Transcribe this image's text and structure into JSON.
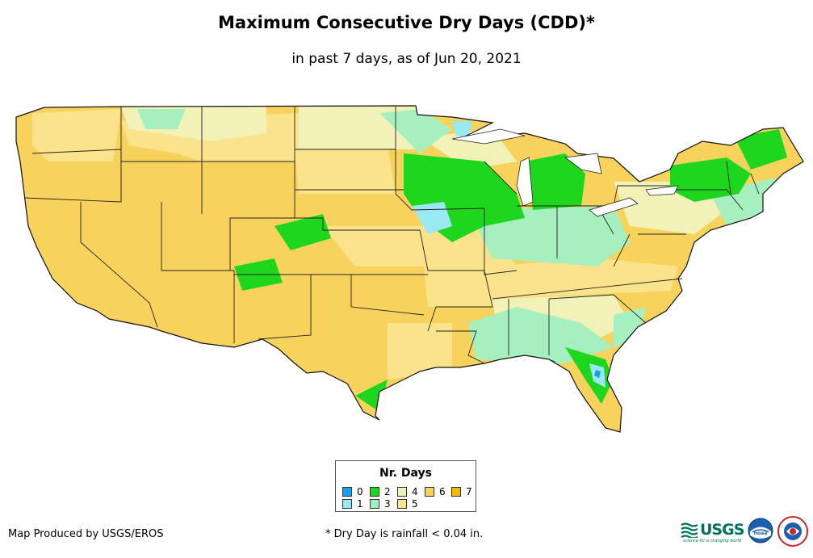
{
  "title": "Maximum Consecutive Dry Days (CDD)*",
  "subtitle": "in past 7 days, as of Jun 20, 2021",
  "legend": {
    "title": "Nr. Days",
    "items": [
      {
        "label": "0",
        "color": "#1a9fea"
      },
      {
        "label": "1",
        "color": "#9be8f5"
      },
      {
        "label": "2",
        "color": "#1ed61e"
      },
      {
        "label": "3",
        "color": "#a6f0c0"
      },
      {
        "label": "4",
        "color": "#f2f2b8"
      },
      {
        "label": "5",
        "color": "#fae38a"
      },
      {
        "label": "6",
        "color": "#f7d35e"
      },
      {
        "label": "7",
        "color": "#f5b800"
      }
    ]
  },
  "credit": "Map Produced by USGS/EROS",
  "footnote": "* Dry Day is rainfall < 0.04 in.",
  "logos": {
    "usgs": "USGS",
    "usgs_tagline": "science for a changing world",
    "noaa": "noaa",
    "nws": "NATIONAL WEATHER SERVICE"
  },
  "icons": [
    "usgs-logo",
    "noaa-logo",
    "nws-logo"
  ],
  "base_color": "#f7d35e"
}
